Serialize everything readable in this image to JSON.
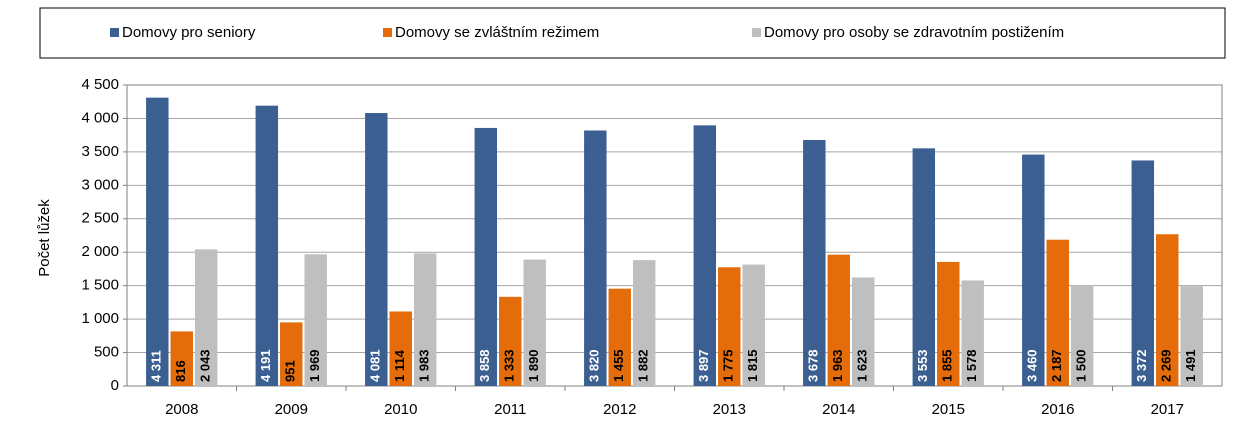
{
  "chart_data": {
    "type": "bar",
    "y_label": "Počet lůžek",
    "categories": [
      "2008",
      "2009",
      "2010",
      "2011",
      "2012",
      "2013",
      "2014",
      "2015",
      "2016",
      "2017"
    ],
    "series": [
      {
        "name": "Domovy pro seniory",
        "color": "#3b5f91",
        "values": [
          4311,
          4191,
          4081,
          3858,
          3820,
          3897,
          3678,
          3553,
          3460,
          3372
        ],
        "value_labels": [
          "4 311",
          "4 191",
          "4 081",
          "3 858",
          "3 820",
          "3 897",
          "3 678",
          "3 553",
          "3 460",
          "3 372"
        ]
      },
      {
        "name": "Domovy se zvláštním režimem",
        "color": "#e46c0a",
        "values": [
          816,
          951,
          1114,
          1333,
          1455,
          1775,
          1963,
          1855,
          2187,
          2269
        ],
        "value_labels": [
          "816",
          "951",
          "1 114",
          "1 333",
          "1 455",
          "1 775",
          "1 963",
          "1 855",
          "2 187",
          "2 269"
        ]
      },
      {
        "name": "Domovy pro osoby se zdravotním postižením",
        "color": "#bfbfbf",
        "values": [
          2043,
          1969,
          1983,
          1890,
          1882,
          1815,
          1623,
          1578,
          1500,
          1491
        ],
        "value_labels": [
          "2 043",
          "1 969",
          "1 983",
          "1 890",
          "1 882",
          "1 815",
          "1 623",
          "1 578",
          "1 500",
          "1 491"
        ]
      }
    ],
    "ylim": [
      0,
      4500
    ],
    "yticks": [
      0,
      500,
      {
        "value": 1000,
        "label": "1 000"
      },
      {
        "value": 1500,
        "label": "1 500"
      },
      {
        "value": 2000,
        "label": "2 000"
      },
      {
        "value": 2500,
        "label": "2 500"
      },
      {
        "value": 3000,
        "label": "3 000"
      },
      {
        "value": 3500,
        "label": "3 500"
      },
      {
        "value": 4000,
        "label": "4 000"
      },
      {
        "value": 4500,
        "label": "4 500"
      }
    ],
    "grid": true,
    "legend": "top"
  }
}
